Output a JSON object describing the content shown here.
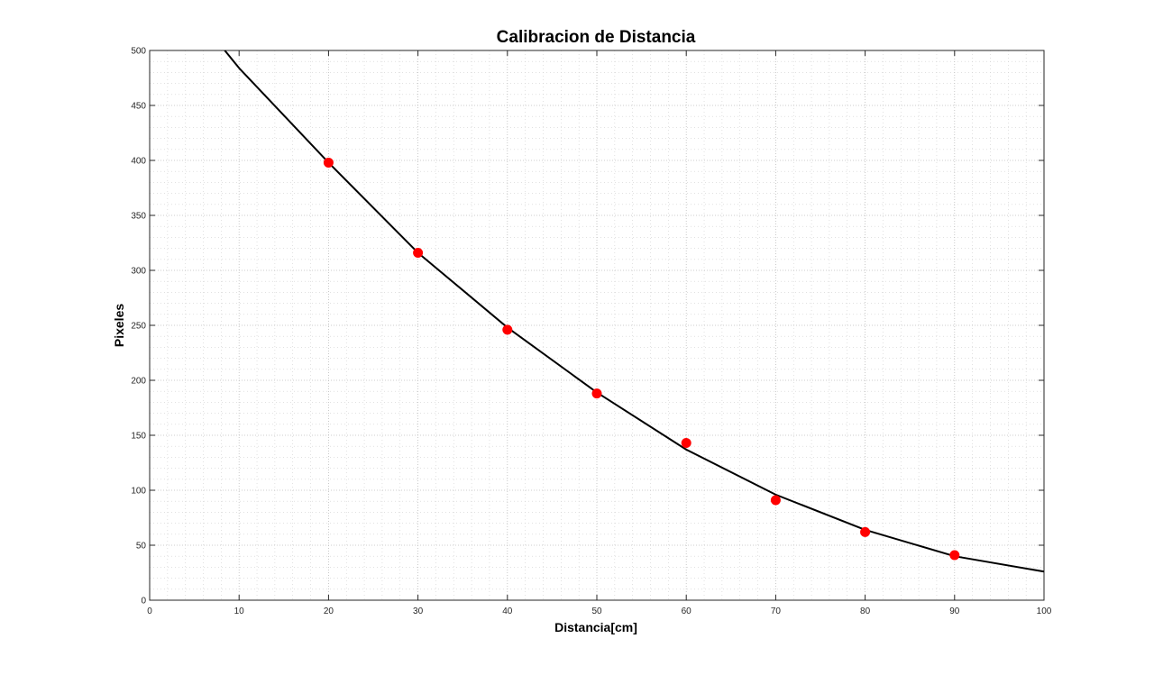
{
  "chart_data": {
    "type": "scatter",
    "title": "Calibracion de Distancia",
    "xlabel": "Distancia[cm]",
    "ylabel": "Pixeles",
    "xlim": [
      0,
      100
    ],
    "ylim": [
      0,
      500
    ],
    "xticks": [
      0,
      10,
      20,
      30,
      40,
      50,
      60,
      70,
      80,
      90,
      100
    ],
    "yticks": [
      0,
      50,
      100,
      150,
      200,
      250,
      300,
      350,
      400,
      450,
      500
    ],
    "grid": true,
    "minor_grid": true,
    "legend": "none",
    "series": [
      {
        "kind": "scatter",
        "color": "#ff0000",
        "x": [
          20,
          30,
          40,
          50,
          60,
          70,
          80,
          90
        ],
        "y": [
          398,
          316,
          246,
          188,
          143,
          91,
          62,
          41
        ]
      },
      {
        "kind": "line",
        "color": "#000000",
        "x": [
          8.4,
          10,
          20,
          30,
          40,
          50,
          60,
          70,
          80,
          90,
          100
        ],
        "y": [
          500,
          484,
          398,
          316,
          248,
          189,
          137,
          96,
          64,
          40,
          26
        ]
      }
    ]
  }
}
